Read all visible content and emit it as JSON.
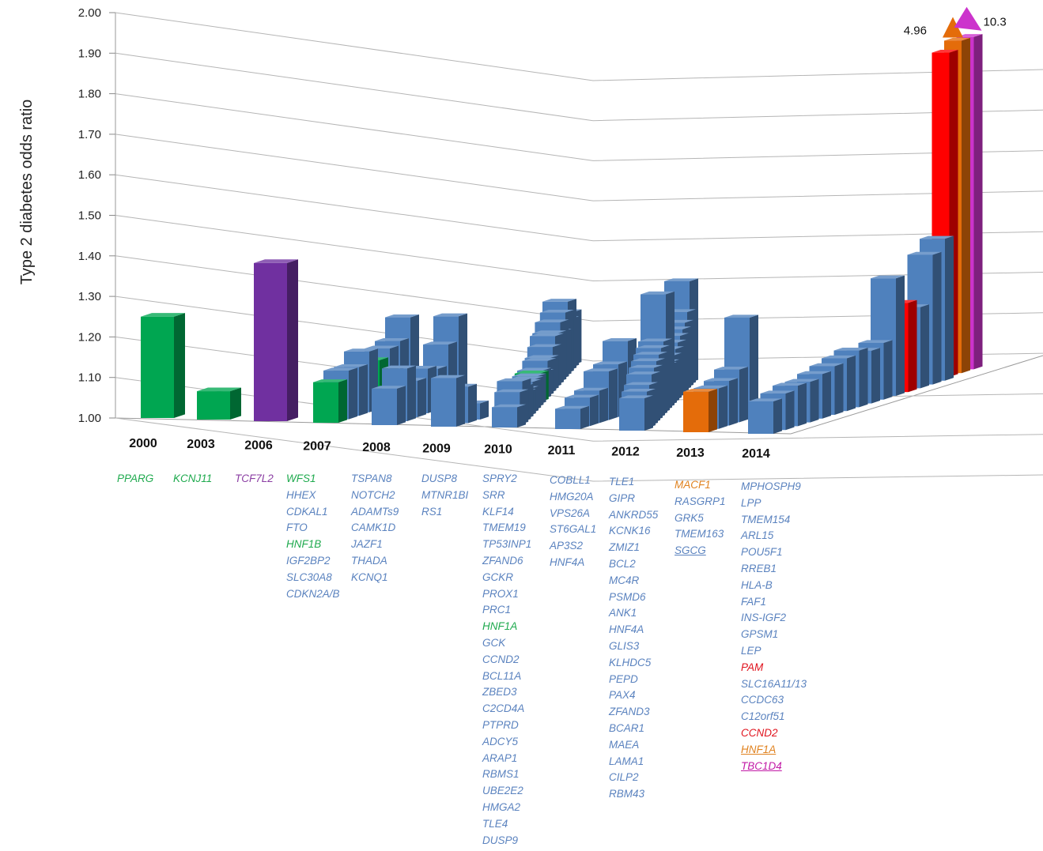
{
  "chart_data": {
    "type": "bar",
    "title": "",
    "ylabel": "Type 2 diabetes odds ratio",
    "xlabel": "",
    "ylim": [
      1.0,
      2.0
    ],
    "yticks": [
      "1.00",
      "1.10",
      "1.20",
      "1.30",
      "1.40",
      "1.50",
      "1.60",
      "1.70",
      "1.80",
      "1.90",
      "2.00"
    ],
    "grid": true,
    "legend": "none",
    "colors": {
      "common_variant": "#4f81bd",
      "green": "#00a651",
      "purple": "#7030a0",
      "orange": "#e46c0a",
      "red": "#ff0000",
      "magenta": "#cc33cc"
    },
    "callouts": [
      {
        "label": "4.96",
        "bar": "HNF1A"
      },
      {
        "label": "10.3",
        "bar": "TBC1D4"
      }
    ],
    "years": [
      {
        "year": "2000",
        "genes": [
          {
            "name": "PPARG",
            "color": "green",
            "or": 1.25
          }
        ]
      },
      {
        "year": "2003",
        "genes": [
          {
            "name": "KCNJ11",
            "color": "green",
            "or": 1.07
          }
        ]
      },
      {
        "year": "2006",
        "genes": [
          {
            "name": "TCF7L2",
            "color": "purple",
            "or": 1.39
          }
        ]
      },
      {
        "year": "2007",
        "genes": [
          {
            "name": "WFS1",
            "color": "green",
            "or": 1.1
          },
          {
            "name": "HHEX",
            "color": "blue",
            "or": 1.12
          },
          {
            "name": "CDKAL1",
            "color": "blue",
            "or": 1.12
          },
          {
            "name": "FTO",
            "color": "blue",
            "or": 1.15
          },
          {
            "name": "HNF1B",
            "color": "green",
            "or": 1.12
          },
          {
            "name": "IGF2BP2",
            "color": "blue",
            "or": 1.14
          },
          {
            "name": "SLC30A8",
            "color": "blue",
            "or": 1.15
          },
          {
            "name": "CDKN2A/B",
            "color": "blue",
            "or": 1.2
          }
        ]
      },
      {
        "year": "2008",
        "genes": [
          {
            "name": "TSPAN8",
            "color": "blue",
            "or": 1.09
          },
          {
            "name": "NOTCH2",
            "color": "blue",
            "or": 1.13
          },
          {
            "name": "ADAMTs9",
            "color": "blue",
            "or": 1.09
          },
          {
            "name": "CAMK1D",
            "color": "blue",
            "or": 1.11
          },
          {
            "name": "JAZF1",
            "color": "blue",
            "or": 1.1
          },
          {
            "name": "THADA",
            "color": "blue",
            "or": 1.15
          },
          {
            "name": "KCNQ1",
            "color": "blue",
            "or": 1.21
          }
        ]
      },
      {
        "year": "2009",
        "genes": [
          {
            "name": "DUSP8",
            "color": "blue",
            "or": 1.12
          },
          {
            "name": "MTNR1BI",
            "color": "blue",
            "or": 1.09
          },
          {
            "name": "RS1",
            "color": "blue",
            "or": 1.04
          }
        ]
      },
      {
        "year": "2010",
        "genes": [
          {
            "name": "SPRY2",
            "color": "blue",
            "or": 1.05
          },
          {
            "name": "SRR",
            "color": "blue",
            "or": 1.08
          },
          {
            "name": "KLF14",
            "color": "blue",
            "or": 1.1
          },
          {
            "name": "TMEM19",
            "color": "blue",
            "or": 1.08
          },
          {
            "name": "TP53INP1",
            "color": "blue",
            "or": 1.06
          },
          {
            "name": "ZFAND6",
            "color": "blue",
            "or": 1.06
          },
          {
            "name": "GCKR",
            "color": "blue",
            "or": 1.07
          },
          {
            "name": "PROX1",
            "color": "blue",
            "or": 1.07
          },
          {
            "name": "PRC1",
            "color": "blue",
            "or": 1.07
          },
          {
            "name": "HNF1A",
            "color": "green",
            "or": 1.07
          },
          {
            "name": "GCK",
            "color": "blue",
            "or": 1.07
          },
          {
            "name": "CCND2",
            "color": "blue",
            "or": 1.06
          },
          {
            "name": "BCL11A",
            "color": "blue",
            "or": 1.08
          },
          {
            "name": "ZBED3",
            "color": "blue",
            "or": 1.08
          },
          {
            "name": "C2CD4A",
            "color": "blue",
            "or": 1.1
          },
          {
            "name": "PTPRD",
            "color": "blue",
            "or": 1.12
          },
          {
            "name": "ADCY5",
            "color": "blue",
            "or": 1.12
          },
          {
            "name": "ARAP1",
            "color": "blue",
            "or": 1.14
          },
          {
            "name": "RBMS1",
            "color": "blue",
            "or": 1.11
          },
          {
            "name": "UBE2E2",
            "color": "blue",
            "or": 1.15
          },
          {
            "name": "HMGA2",
            "color": "blue",
            "or": 1.17
          },
          {
            "name": "TLE4",
            "color": "blue",
            "or": 1.12
          },
          {
            "name": "DUSP9",
            "color": "blue",
            "or": 1.13
          }
        ]
      },
      {
        "year": "2011",
        "genes": [
          {
            "name": "COBLL1",
            "color": "blue",
            "or": 1.05
          },
          {
            "name": "HMG20A",
            "color": "blue",
            "or": 1.07
          },
          {
            "name": "VPS26A",
            "color": "blue",
            "or": 1.08
          },
          {
            "name": "ST6GAL1",
            "color": "blue",
            "or": 1.12
          },
          {
            "name": "AP3S2",
            "color": "blue",
            "or": 1.13
          },
          {
            "name": "HNF4A",
            "color": "blue",
            "or": 1.18
          }
        ]
      },
      {
        "year": "2012",
        "genes": [
          {
            "name": "TLE1",
            "color": "blue",
            "or": 1.08
          },
          {
            "name": "GIPR",
            "color": "blue",
            "or": 1.09
          },
          {
            "name": "ANKRD55",
            "color": "blue",
            "or": 1.1
          },
          {
            "name": "KCNK16",
            "color": "blue",
            "or": 1.12
          },
          {
            "name": "ZMIZ1",
            "color": "blue",
            "or": 1.13
          },
          {
            "name": "BCL2",
            "color": "blue",
            "or": 1.14
          },
          {
            "name": "MC4R",
            "color": "blue",
            "or": 1.15
          },
          {
            "name": "PSMD6",
            "color": "blue",
            "or": 1.16
          },
          {
            "name": "ANK1",
            "color": "blue",
            "or": 1.17
          },
          {
            "name": "HNF4A",
            "color": "blue",
            "or": 1.28
          },
          {
            "name": "GLIS3",
            "color": "blue",
            "or": 1.1
          },
          {
            "name": "KLHDC5",
            "color": "blue",
            "or": 1.1
          },
          {
            "name": "PEPD",
            "color": "blue",
            "or": 1.11
          },
          {
            "name": "PAX4",
            "color": "blue",
            "or": 1.12
          },
          {
            "name": "ZFAND3",
            "color": "blue",
            "or": 1.13
          },
          {
            "name": "BCAR1",
            "color": "blue",
            "or": 1.14
          },
          {
            "name": "MAEA",
            "color": "blue",
            "or": 1.15
          },
          {
            "name": "LAMA1",
            "color": "blue",
            "or": 1.16
          },
          {
            "name": "CILP2",
            "color": "blue",
            "or": 1.18
          },
          {
            "name": "RBM43",
            "color": "blue",
            "or": 1.25
          }
        ]
      },
      {
        "year": "2013",
        "genes": [
          {
            "name": "MACF1",
            "color": "orange",
            "or": 1.1
          },
          {
            "name": "RASGRP1",
            "color": "blue",
            "or": 1.1
          },
          {
            "name": "GRK5",
            "color": "blue",
            "or": 1.11
          },
          {
            "name": "TMEM163",
            "color": "blue",
            "or": 1.13
          },
          {
            "name": "SGCG",
            "color": "blue",
            "or": 1.25,
            "underline": true
          }
        ]
      },
      {
        "year": "2014",
        "genes": [
          {
            "name": "MPHOSPH9",
            "color": "blue",
            "or": 1.08
          },
          {
            "name": "LPP",
            "color": "blue",
            "or": 1.09
          },
          {
            "name": "TMEM154",
            "color": "blue",
            "or": 1.1
          },
          {
            "name": "ARL15",
            "color": "blue",
            "or": 1.1
          },
          {
            "name": "POU5F1",
            "color": "blue",
            "or": 1.11
          },
          {
            "name": "RREB1",
            "color": "blue",
            "or": 1.12
          },
          {
            "name": "HLA-B",
            "color": "blue",
            "or": 1.13
          },
          {
            "name": "FAF1",
            "color": "blue",
            "or": 1.14
          },
          {
            "name": "INS-IGF2",
            "color": "blue",
            "or": 1.13
          },
          {
            "name": "GPSM1",
            "color": "blue",
            "or": 1.14
          },
          {
            "name": "LEP",
            "color": "blue",
            "or": 1.29
          },
          {
            "name": "PAM",
            "color": "red",
            "or": 1.22
          },
          {
            "name": "SLC16A11/13",
            "color": "blue",
            "or": 1.2
          },
          {
            "name": "CCDC63",
            "color": "blue",
            "or": 1.32
          },
          {
            "name": "C12orf51",
            "color": "blue",
            "or": 1.35
          },
          {
            "name": "CCND2",
            "color": "red",
            "or": 1.8
          },
          {
            "name": "HNF1A",
            "color": "orange",
            "or": 4.96,
            "underline": true
          },
          {
            "name": "TBC1D4",
            "color": "magenta",
            "or": 10.3,
            "underline": true
          }
        ]
      }
    ]
  }
}
